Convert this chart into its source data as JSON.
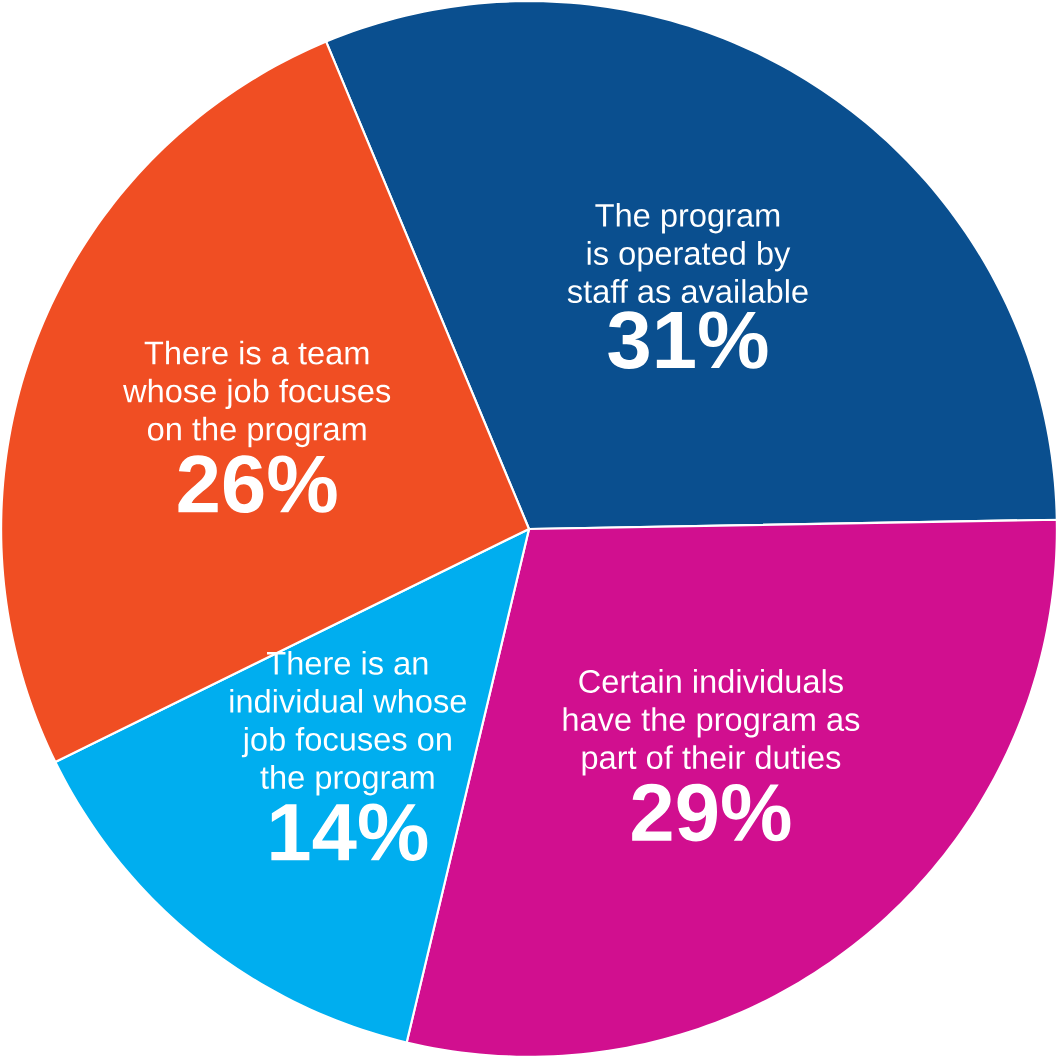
{
  "chart_data": {
    "type": "pie",
    "categories": [
      "The program is operated by staff as available",
      "Certain individuals have the program as part of their duties",
      "There is an individual whose job focuses on the program",
      "There is a team whose job focuses on the program"
    ],
    "values": [
      31,
      29,
      14,
      26
    ],
    "value_labels": [
      "31%",
      "29%",
      "14%",
      "26%"
    ],
    "colors": [
      "#0a4f8f",
      "#d10f8f",
      "#00aeef",
      "#f04e23"
    ]
  }
}
